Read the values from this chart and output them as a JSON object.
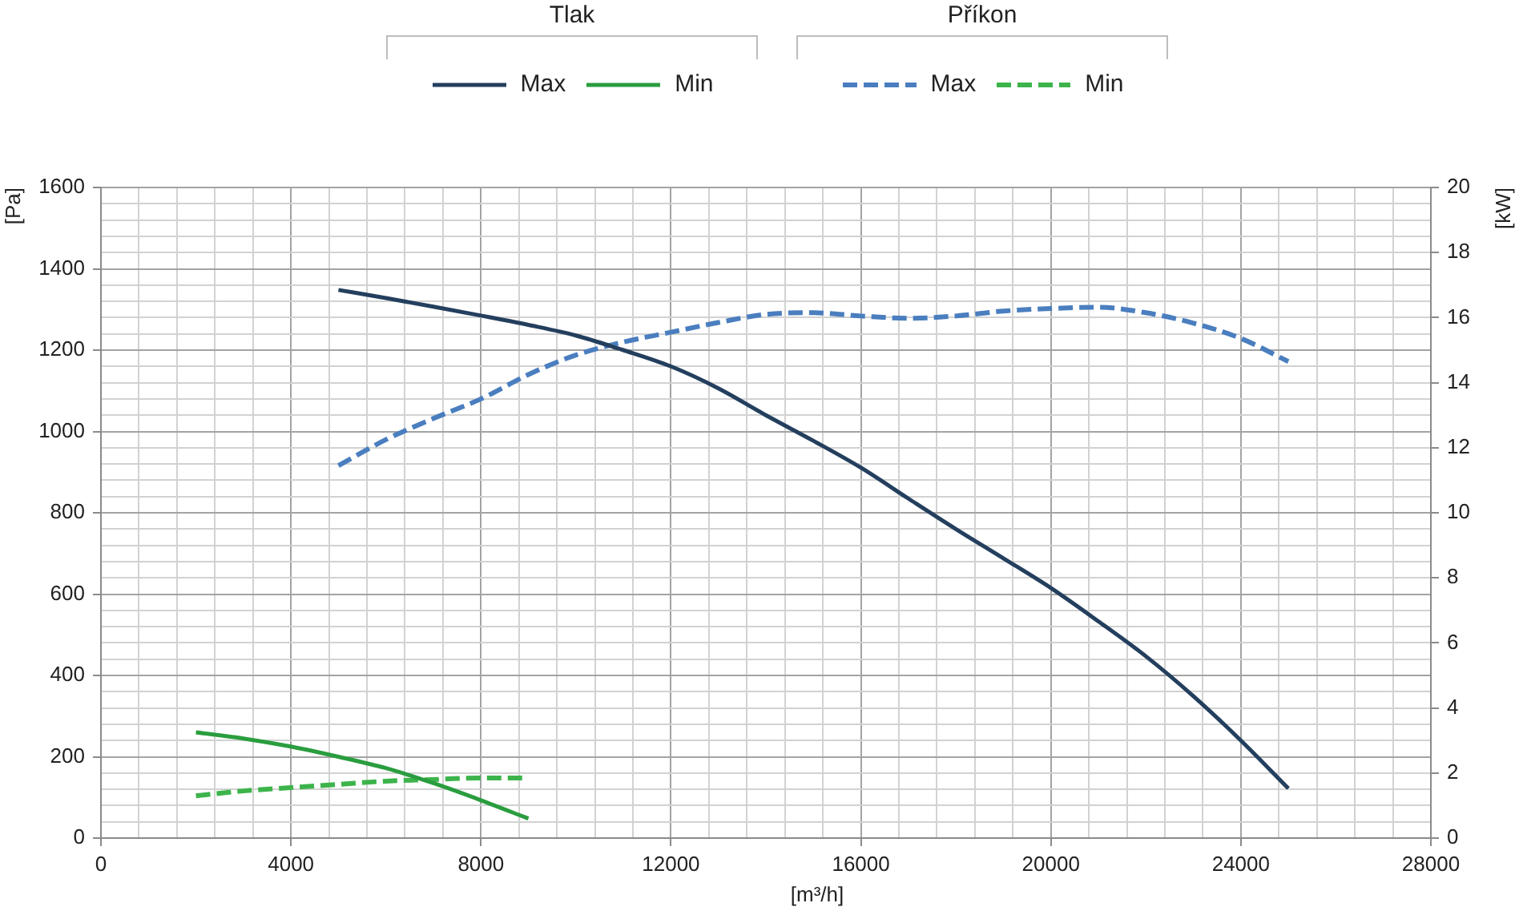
{
  "chart_data": {
    "type": "line",
    "xlabel": "[m³/h]",
    "ylabel": "[Pa]",
    "y2label": "[kW]",
    "annotations": [
      "Tlak",
      "Příkon"
    ],
    "xlim": [
      0,
      28000
    ],
    "xticks": [
      0,
      {
        "value": 800,
        "label": null
      },
      {
        "value": 1600,
        "label": null
      },
      {
        "value": 2400,
        "label": null
      },
      {
        "value": 3200,
        "label": null
      },
      4000,
      {
        "value": 4800,
        "label": null
      },
      {
        "value": 5600,
        "label": null
      },
      {
        "value": 6400,
        "label": null
      },
      {
        "value": 7200,
        "label": null
      },
      8000,
      {
        "value": 8800,
        "label": null
      },
      {
        "value": 9600,
        "label": null
      },
      {
        "value": 10400,
        "label": null
      },
      {
        "value": 11200,
        "label": null
      },
      12000,
      {
        "value": 12800,
        "label": null
      },
      {
        "value": 13600,
        "label": null
      },
      {
        "value": 14400,
        "label": null
      },
      {
        "value": 15200,
        "label": null
      },
      16000,
      {
        "value": 16800,
        "label": null
      },
      {
        "value": 17600,
        "label": null
      },
      {
        "value": 18400,
        "label": null
      },
      {
        "value": 19200,
        "label": null
      },
      20000,
      {
        "value": 20800,
        "label": null
      },
      {
        "value": 21600,
        "label": null
      },
      {
        "value": 22400,
        "label": null
      },
      {
        "value": 23200,
        "label": null
      },
      24000,
      {
        "value": 24800,
        "label": null
      },
      {
        "value": 25600,
        "label": null
      },
      {
        "value": 26400,
        "label": null
      },
      {
        "value": 27200,
        "label": null
      },
      28000
    ],
    "ylim": [
      0,
      1600
    ],
    "yticks": [
      0,
      {
        "value": 40,
        "label": null
      },
      {
        "value": 80,
        "label": null
      },
      {
        "value": 120,
        "label": null
      },
      {
        "value": 160,
        "label": null
      },
      200,
      {
        "value": 240,
        "label": null
      },
      {
        "value": 280,
        "label": null
      },
      {
        "value": 320,
        "label": null
      },
      {
        "value": 360,
        "label": null
      },
      400,
      {
        "value": 440,
        "label": null
      },
      {
        "value": 480,
        "label": null
      },
      {
        "value": 520,
        "label": null
      },
      {
        "value": 560,
        "label": null
      },
      600,
      {
        "value": 640,
        "label": null
      },
      {
        "value": 680,
        "label": null
      },
      {
        "value": 720,
        "label": null
      },
      {
        "value": 760,
        "label": null
      },
      800,
      {
        "value": 840,
        "label": null
      },
      {
        "value": 880,
        "label": null
      },
      {
        "value": 920,
        "label": null
      },
      {
        "value": 960,
        "label": null
      },
      1000,
      {
        "value": 1040,
        "label": null
      },
      {
        "value": 1080,
        "label": null
      },
      {
        "value": 1120,
        "label": null
      },
      {
        "value": 1160,
        "label": null
      },
      1200,
      {
        "value": 1240,
        "label": null
      },
      {
        "value": 1280,
        "label": null
      },
      {
        "value": 1320,
        "label": null
      },
      {
        "value": 1360,
        "label": null
      },
      1400,
      {
        "value": 1440,
        "label": null
      },
      {
        "value": 1480,
        "label": null
      },
      {
        "value": 1520,
        "label": null
      },
      {
        "value": 1560,
        "label": null
      },
      1600
    ],
    "y2lim": [
      0,
      20
    ],
    "y2ticks": [
      0,
      2,
      4,
      6,
      8,
      10,
      12,
      14,
      16,
      18,
      20
    ],
    "grid": true,
    "legend": "top",
    "marker": "none",
    "series": [
      {
        "name": "Max",
        "color": "#243f5e",
        "axis": "y",
        "line_style": "solid",
        "x": [
          5000,
          6000,
          7000,
          8000,
          9000,
          10000,
          11000,
          12000,
          13000,
          14000,
          15000,
          16000,
          17000,
          18000,
          19000,
          20000,
          21000,
          22000,
          23000,
          24000,
          25000
        ],
        "values": [
          1348,
          1328,
          1307,
          1285,
          1262,
          1236,
          1200,
          1160,
          1106,
          1040,
          977,
          911,
          835,
          760,
          688,
          615,
          533,
          447,
          349,
          240,
          122
        ]
      },
      {
        "name": "Min",
        "color": "#2a9d3f",
        "axis": "y",
        "line_style": "solid",
        "x": [
          2000,
          3000,
          4000,
          5000,
          6000,
          7000,
          8000,
          9000
        ],
        "values": [
          260,
          245,
          225,
          200,
          172,
          135,
          93,
          48
        ]
      },
      {
        "name": "Max",
        "color": "#4a7ebf",
        "axis": "y2",
        "line_style": "dashed",
        "x": [
          5000,
          6000,
          7000,
          8000,
          9000,
          10000,
          11000,
          12000,
          13000,
          14000,
          15000,
          16000,
          17000,
          18000,
          19000,
          20000,
          21000,
          22000,
          23000,
          24000,
          25000
        ],
        "values": [
          11.45,
          12.25,
          12.9,
          13.5,
          14.25,
          14.85,
          15.25,
          15.55,
          15.85,
          16.1,
          16.15,
          16.05,
          15.98,
          16.05,
          16.2,
          16.28,
          16.32,
          16.15,
          15.83,
          15.36,
          14.65
        ]
      },
      {
        "name": "Min",
        "color": "#3cb44b",
        "axis": "y2",
        "line_style": "dashed",
        "x": [
          2000,
          3000,
          4000,
          5000,
          6000,
          7000,
          8000,
          9000
        ],
        "values": [
          1.3,
          1.45,
          1.55,
          1.65,
          1.75,
          1.8,
          1.85,
          1.85
        ]
      }
    ]
  }
}
